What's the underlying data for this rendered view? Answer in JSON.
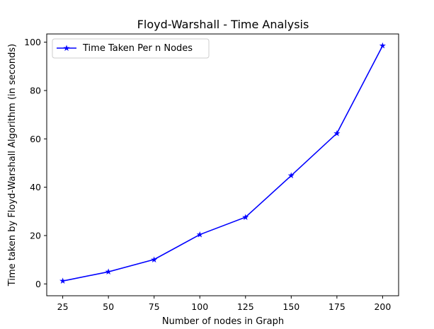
{
  "chart_data": {
    "type": "line",
    "title": "Floyd-Warshall - Time Analysis",
    "xlabel": "Number of nodes in Graph",
    "ylabel": "Time taken by Floyd-Warshall Algorithm (in seconds)",
    "x": [
      25,
      50,
      75,
      100,
      125,
      150,
      175,
      200
    ],
    "xticks": [
      "25",
      "50",
      "75",
      "100",
      "125",
      "150",
      "175",
      "200"
    ],
    "yticks": [
      "0",
      "20",
      "40",
      "60",
      "80",
      "100"
    ],
    "xlim": [
      16.25,
      208.75
    ],
    "ylim": [
      -4.9,
      103.4
    ],
    "grid": false,
    "legend_position": "top-left",
    "series": [
      {
        "name": "Time Taken Per n Nodes",
        "color": "#0000ff",
        "marker": "star",
        "values": [
          1.2,
          5.0,
          10.1,
          20.4,
          27.6,
          44.8,
          62.3,
          98.5
        ]
      }
    ]
  }
}
